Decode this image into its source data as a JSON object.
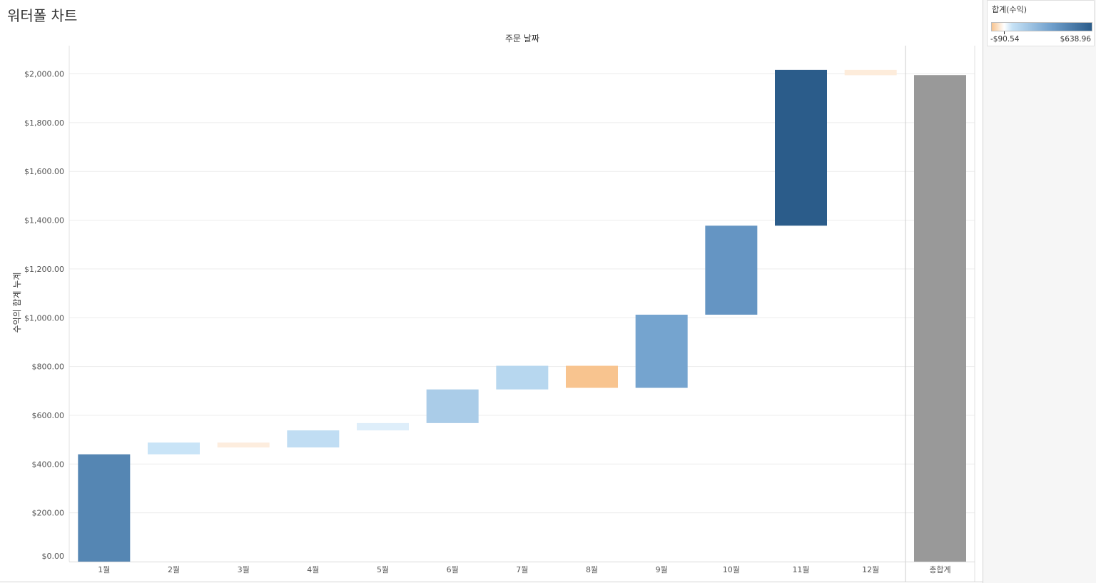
{
  "title": "워터폴 차트",
  "legend": {
    "title": "합계(수익)",
    "min_label": "-$90.54",
    "max_label": "$638.96",
    "min_value": -90.54,
    "max_value": 638.96,
    "colors": [
      "#f8c48f",
      "#ffffff",
      "#c6e2f6",
      "#6f9fcc",
      "#2b5c8a"
    ]
  },
  "colors": {
    "total_bar": "#999999",
    "grid": "#ececec",
    "axis_text": "#555555"
  },
  "chart_data": {
    "type": "bar",
    "subtype": "waterfall",
    "column_header": "주문 날짜",
    "ylabel": "수익의 합계 누계",
    "ylim": [
      0,
      2100
    ],
    "yticks": [
      0,
      200,
      400,
      600,
      800,
      1000,
      1200,
      1400,
      1600,
      1800,
      2000
    ],
    "ytick_labels": [
      "$0.00",
      "$200.00",
      "$400.00",
      "$600.00",
      "$800.00",
      "$1,000.00",
      "$1,200.00",
      "$1,400.00",
      "$1,600.00",
      "$1,800.00",
      "$2,000.00"
    ],
    "categories": [
      "1월",
      "2월",
      "3월",
      "4월",
      "5월",
      "6월",
      "7월",
      "8월",
      "9월",
      "10월",
      "11월",
      "12월"
    ],
    "values": [
      440,
      48,
      -20,
      70,
      30,
      138,
      97,
      -90.54,
      300,
      365,
      638.96,
      -22
    ],
    "total_label": "총합계",
    "total_value": 1995,
    "grid": true
  }
}
